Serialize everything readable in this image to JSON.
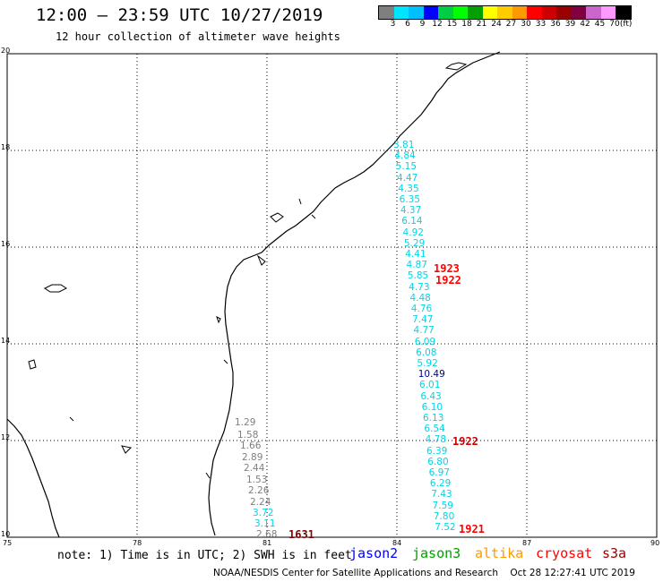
{
  "header": {
    "title": "12:00 – 23:59 UTC 10/27/2019",
    "subtitle": "12 hour collection of altimeter wave heights"
  },
  "colorbar": {
    "colors": [
      "#7f7f7f",
      "#00e5ff",
      "#00bfff",
      "#0000ff",
      "#00cc44",
      "#00ff00",
      "#00a000",
      "#ffff00",
      "#ffcc00",
      "#ff9900",
      "#ff0000",
      "#cc0000",
      "#990000",
      "#800040",
      "#cc66cc",
      "#ff99ff",
      "#000000"
    ],
    "labels": [
      "3",
      "6",
      "9",
      "12",
      "15",
      "18",
      "21",
      "24",
      "27",
      "30",
      "33",
      "36",
      "39",
      "42",
      "45",
      "70",
      "(ft)"
    ]
  },
  "axes": {
    "lat_labels": [
      "20",
      "18",
      "16",
      "14",
      "12",
      "10"
    ],
    "lon_labels": [
      "75",
      "78",
      "81",
      "84",
      "87",
      "90"
    ]
  },
  "tracks": {
    "gray_values": [
      "1.29",
      "1.58",
      "1.66",
      "2.89",
      "2.44",
      "1.53",
      "2.26",
      "2.24"
    ],
    "cyan_low_values": [
      "3.72",
      "3.11",
      "2.68"
    ],
    "east_values": [
      "3.81",
      "4.84",
      "5.15",
      "4.47",
      "4.35",
      "6.35",
      "4.37",
      "6.14",
      "4.92",
      "5.29",
      "4.41",
      "4.87",
      "5.85",
      "4.73",
      "4.48",
      "4.76",
      "7.47",
      "4.77",
      "6.09",
      "6.08",
      "5.92",
      "10.49",
      "6.01",
      "6.43",
      "6.10",
      "6.13",
      "6.54",
      "4.78",
      "6.39",
      "6.80",
      "6.97",
      "6.29",
      "7.43",
      "7.59",
      "7.80",
      "7.52"
    ],
    "times": [
      "1923",
      "1922",
      "1922",
      "1921",
      "1631"
    ],
    "colors": {
      "cyan": "#00d5e6",
      "gray": "#7f7f7f",
      "navy": "#000080",
      "red": "#ff0000",
      "darkred": "#800000"
    }
  },
  "footer": {
    "note": "note: 1) Time is in UTC; 2) SWH is in feet",
    "satellites": [
      {
        "name": "jason2",
        "color": "#0000ff"
      },
      {
        "name": "jason3",
        "color": "#00a000"
      },
      {
        "name": "altika",
        "color": "#ff9900"
      },
      {
        "name": "cryosat",
        "color": "#ff0000"
      },
      {
        "name": "s3a",
        "color": "#990000"
      }
    ],
    "credit": "NOAA/NESDIS Center for Satellite Applications and Research    Oct 28 12:27:41 UTC 2019"
  }
}
